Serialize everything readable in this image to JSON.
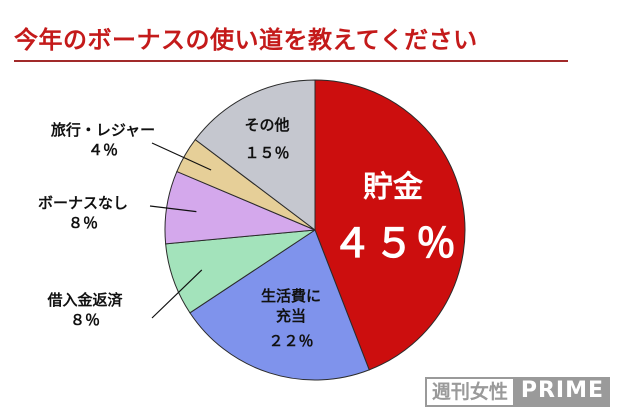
{
  "chart_data": {
    "type": "pie",
    "title": "今年のボーナスの使い道を教えてください",
    "slices": [
      {
        "label": "貯金",
        "value": 45,
        "value_text": "４５％",
        "color": "#cc0e0e"
      },
      {
        "label": "生活費に充当",
        "label_lines": [
          "生活費に",
          "充当"
        ],
        "value": 22,
        "value_text": "２２％",
        "color": "#7f93ec"
      },
      {
        "label": "借入金返済",
        "value": 8,
        "value_text": "８％",
        "color": "#a3e3bb"
      },
      {
        "label": "ボーナスなし",
        "value": 8,
        "value_text": "８％",
        "color": "#d4a8ec"
      },
      {
        "label": "旅行・レジャー",
        "value": 4,
        "value_text": "４％",
        "color": "#e6cf98"
      },
      {
        "label": "その他",
        "value": 15,
        "value_text": "１５％",
        "color": "#c5c7cf"
      }
    ]
  },
  "watermark": {
    "left": "週刊女性",
    "right": "PRIME"
  }
}
